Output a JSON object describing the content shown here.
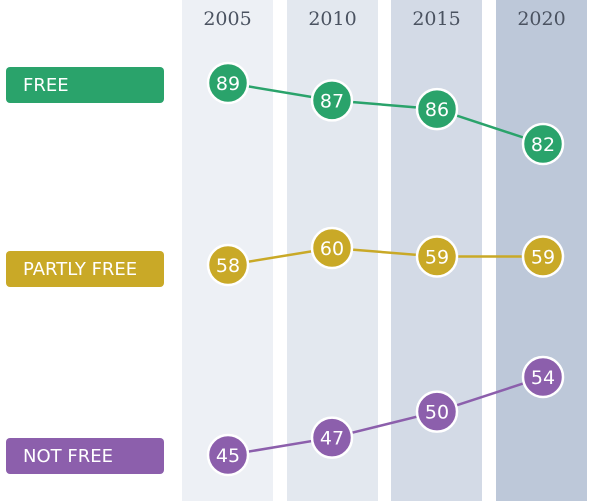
{
  "chart_data": {
    "type": "line",
    "x": [
      "2005",
      "2010",
      "2015",
      "2020"
    ],
    "series": [
      {
        "name": "FREE",
        "values": [
          89,
          87,
          86,
          82
        ],
        "color": "#2aa36b"
      },
      {
        "name": "PARTLY FREE",
        "values": [
          58,
          60,
          59,
          59
        ],
        "color": "#c9a927"
      },
      {
        "name": "NOT FREE",
        "values": [
          45,
          47,
          50,
          54
        ],
        "color": "#8c5fac"
      }
    ],
    "column_shades": [
      "#edf0f5",
      "#e3e8ef",
      "#d3dae6",
      "#bdc8d9"
    ],
    "grid": false,
    "legend_position": "left",
    "title": ""
  }
}
